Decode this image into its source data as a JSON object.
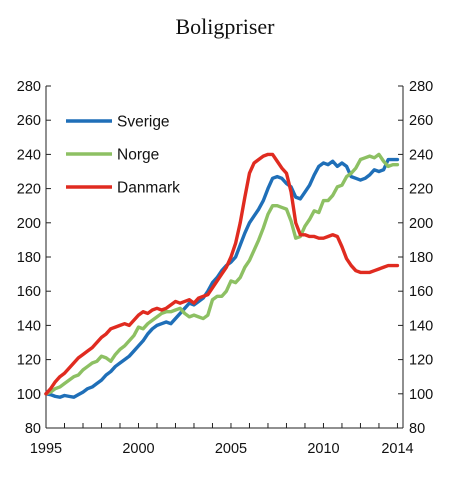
{
  "chart_data": {
    "type": "line",
    "title": "Boligpriser",
    "xlabel": "",
    "ylabel": "",
    "xlim": [
      1995.0,
      2014.3
    ],
    "ylim": [
      80,
      280
    ],
    "grid": false,
    "legend_position": "top-left",
    "x_ticks": [
      {
        "value": 1995,
        "label": "1995"
      },
      {
        "value": 2000,
        "label": "2000"
      },
      {
        "value": 2005,
        "label": "2005"
      },
      {
        "value": 2010,
        "label": "2010"
      },
      {
        "value": 2014,
        "label": "2014"
      }
    ],
    "y_ticks": [
      "80",
      "100",
      "120",
      "140",
      "160",
      "180",
      "200",
      "220",
      "240",
      "260",
      "280"
    ],
    "series": [
      {
        "name": "Sverige",
        "color": "#1f6fb8",
        "points": [
          [
            1995.0,
            100
          ],
          [
            1995.25,
            99.5
          ],
          [
            1995.5,
            98.5
          ],
          [
            1995.75,
            98
          ],
          [
            1996.0,
            99
          ],
          [
            1996.25,
            98.5
          ],
          [
            1996.5,
            98
          ],
          [
            1996.75,
            99.5
          ],
          [
            1997.0,
            101
          ],
          [
            1997.25,
            103
          ],
          [
            1997.5,
            104
          ],
          [
            1997.75,
            106
          ],
          [
            1998.0,
            108
          ],
          [
            1998.25,
            111
          ],
          [
            1998.5,
            113
          ],
          [
            1998.75,
            116
          ],
          [
            1999.0,
            118
          ],
          [
            1999.25,
            120
          ],
          [
            1999.5,
            122
          ],
          [
            1999.75,
            125
          ],
          [
            2000.0,
            128
          ],
          [
            2000.25,
            131
          ],
          [
            2000.5,
            135
          ],
          [
            2000.75,
            138
          ],
          [
            2001.0,
            140
          ],
          [
            2001.25,
            141
          ],
          [
            2001.5,
            142
          ],
          [
            2001.75,
            141
          ],
          [
            2002.0,
            144
          ],
          [
            2002.25,
            147
          ],
          [
            2002.5,
            150
          ],
          [
            2002.75,
            153
          ],
          [
            2003.0,
            152
          ],
          [
            2003.25,
            154
          ],
          [
            2003.5,
            156
          ],
          [
            2003.75,
            160
          ],
          [
            2004.0,
            165
          ],
          [
            2004.25,
            168
          ],
          [
            2004.5,
            172
          ],
          [
            2004.75,
            175
          ],
          [
            2005.0,
            177
          ],
          [
            2005.25,
            180
          ],
          [
            2005.5,
            187
          ],
          [
            2005.75,
            194
          ],
          [
            2006.0,
            200
          ],
          [
            2006.25,
            204
          ],
          [
            2006.5,
            208
          ],
          [
            2006.75,
            213
          ],
          [
            2007.0,
            220
          ],
          [
            2007.25,
            226
          ],
          [
            2007.5,
            227
          ],
          [
            2007.75,
            226
          ],
          [
            2008.0,
            223
          ],
          [
            2008.25,
            221
          ],
          [
            2008.5,
            215
          ],
          [
            2008.75,
            214
          ],
          [
            2009.0,
            218
          ],
          [
            2009.25,
            222
          ],
          [
            2009.5,
            228
          ],
          [
            2009.75,
            233
          ],
          [
            2010.0,
            235
          ],
          [
            2010.25,
            234
          ],
          [
            2010.5,
            236
          ],
          [
            2010.75,
            233
          ],
          [
            2011.0,
            235
          ],
          [
            2011.25,
            233
          ],
          [
            2011.5,
            227
          ],
          [
            2011.75,
            226
          ],
          [
            2012.0,
            225
          ],
          [
            2012.25,
            226
          ],
          [
            2012.5,
            228
          ],
          [
            2012.75,
            231
          ],
          [
            2013.0,
            230
          ],
          [
            2013.25,
            231
          ],
          [
            2013.5,
            237
          ],
          [
            2013.75,
            237
          ],
          [
            2014.0,
            237
          ]
        ]
      },
      {
        "name": "Norge",
        "color": "#8dc063",
        "points": [
          [
            1995.0,
            100
          ],
          [
            1995.25,
            101
          ],
          [
            1995.5,
            103
          ],
          [
            1995.75,
            104
          ],
          [
            1996.0,
            106
          ],
          [
            1996.25,
            108
          ],
          [
            1996.5,
            110
          ],
          [
            1996.75,
            111
          ],
          [
            1997.0,
            114
          ],
          [
            1997.25,
            116
          ],
          [
            1997.5,
            118
          ],
          [
            1997.75,
            119
          ],
          [
            1998.0,
            122
          ],
          [
            1998.25,
            121
          ],
          [
            1998.5,
            119
          ],
          [
            1998.75,
            123
          ],
          [
            1999.0,
            126
          ],
          [
            1999.25,
            128
          ],
          [
            1999.5,
            131
          ],
          [
            1999.75,
            134
          ],
          [
            2000.0,
            139
          ],
          [
            2000.25,
            138
          ],
          [
            2000.5,
            141
          ],
          [
            2000.75,
            143
          ],
          [
            2001.0,
            145
          ],
          [
            2001.25,
            147
          ],
          [
            2001.5,
            148
          ],
          [
            2001.75,
            148
          ],
          [
            2002.0,
            149
          ],
          [
            2002.25,
            150
          ],
          [
            2002.5,
            147
          ],
          [
            2002.75,
            145
          ],
          [
            2003.0,
            146
          ],
          [
            2003.25,
            145
          ],
          [
            2003.5,
            144
          ],
          [
            2003.75,
            146
          ],
          [
            2004.0,
            155
          ],
          [
            2004.25,
            157
          ],
          [
            2004.5,
            157
          ],
          [
            2004.75,
            160
          ],
          [
            2005.0,
            166
          ],
          [
            2005.25,
            165
          ],
          [
            2005.5,
            168
          ],
          [
            2005.75,
            174
          ],
          [
            2006.0,
            178
          ],
          [
            2006.25,
            184
          ],
          [
            2006.5,
            190
          ],
          [
            2006.75,
            197
          ],
          [
            2007.0,
            205
          ],
          [
            2007.25,
            210
          ],
          [
            2007.5,
            210
          ],
          [
            2007.75,
            209
          ],
          [
            2008.0,
            208
          ],
          [
            2008.25,
            201
          ],
          [
            2008.5,
            191
          ],
          [
            2008.75,
            192
          ],
          [
            2009.0,
            198
          ],
          [
            2009.25,
            202
          ],
          [
            2009.5,
            207
          ],
          [
            2009.75,
            206
          ],
          [
            2010.0,
            213
          ],
          [
            2010.25,
            213
          ],
          [
            2010.5,
            216
          ],
          [
            2010.75,
            221
          ],
          [
            2011.0,
            222
          ],
          [
            2011.25,
            227
          ],
          [
            2011.5,
            229
          ],
          [
            2011.75,
            232
          ],
          [
            2012.0,
            237
          ],
          [
            2012.25,
            238
          ],
          [
            2012.5,
            239
          ],
          [
            2012.75,
            238
          ],
          [
            2013.0,
            240
          ],
          [
            2013.25,
            236
          ],
          [
            2013.5,
            233
          ],
          [
            2013.75,
            234
          ],
          [
            2014.0,
            234
          ]
        ]
      },
      {
        "name": "Danmark",
        "color": "#e02b20",
        "points": [
          [
            1995.0,
            100
          ],
          [
            1995.25,
            103
          ],
          [
            1995.5,
            107
          ],
          [
            1995.75,
            110
          ],
          [
            1996.0,
            112
          ],
          [
            1996.25,
            115
          ],
          [
            1996.5,
            118
          ],
          [
            1996.75,
            121
          ],
          [
            1997.0,
            123
          ],
          [
            1997.25,
            125
          ],
          [
            1997.5,
            127
          ],
          [
            1997.75,
            130
          ],
          [
            1998.0,
            133
          ],
          [
            1998.25,
            135
          ],
          [
            1998.5,
            138
          ],
          [
            1998.75,
            139
          ],
          [
            1999.0,
            140
          ],
          [
            1999.25,
            141
          ],
          [
            1999.5,
            140
          ],
          [
            1999.75,
            143
          ],
          [
            2000.0,
            146
          ],
          [
            2000.25,
            148
          ],
          [
            2000.5,
            147
          ],
          [
            2000.75,
            149
          ],
          [
            2001.0,
            150
          ],
          [
            2001.25,
            149
          ],
          [
            2001.5,
            150
          ],
          [
            2001.75,
            152
          ],
          [
            2002.0,
            154
          ],
          [
            2002.25,
            153
          ],
          [
            2002.5,
            154
          ],
          [
            2002.75,
            155
          ],
          [
            2003.0,
            153
          ],
          [
            2003.25,
            156
          ],
          [
            2003.5,
            157
          ],
          [
            2003.75,
            158
          ],
          [
            2004.0,
            162
          ],
          [
            2004.25,
            166
          ],
          [
            2004.5,
            170
          ],
          [
            2004.75,
            174
          ],
          [
            2005.0,
            180
          ],
          [
            2005.25,
            188
          ],
          [
            2005.5,
            200
          ],
          [
            2005.75,
            215
          ],
          [
            2006.0,
            229
          ],
          [
            2006.25,
            235
          ],
          [
            2006.5,
            237
          ],
          [
            2006.75,
            239
          ],
          [
            2007.0,
            240
          ],
          [
            2007.25,
            240
          ],
          [
            2007.5,
            236
          ],
          [
            2007.75,
            232
          ],
          [
            2008.0,
            229
          ],
          [
            2008.25,
            218
          ],
          [
            2008.5,
            200
          ],
          [
            2008.75,
            193
          ],
          [
            2009.0,
            193
          ],
          [
            2009.25,
            192
          ],
          [
            2009.5,
            192
          ],
          [
            2009.75,
            191
          ],
          [
            2010.0,
            191
          ],
          [
            2010.25,
            192
          ],
          [
            2010.5,
            193
          ],
          [
            2010.75,
            192
          ],
          [
            2011.0,
            186
          ],
          [
            2011.25,
            179
          ],
          [
            2011.5,
            175
          ],
          [
            2011.75,
            172
          ],
          [
            2012.0,
            171
          ],
          [
            2012.25,
            171
          ],
          [
            2012.5,
            171
          ],
          [
            2012.75,
            172
          ],
          [
            2013.0,
            173
          ],
          [
            2013.25,
            174
          ],
          [
            2013.5,
            175
          ],
          [
            2013.75,
            175
          ],
          [
            2014.0,
            175
          ]
        ]
      }
    ]
  }
}
